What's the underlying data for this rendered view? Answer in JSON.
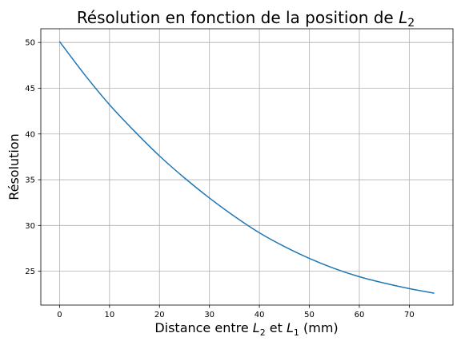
{
  "chart_data": {
    "type": "line",
    "title": {
      "main": "Résolution en fonction de la position de ",
      "var": "L",
      "sub": "2"
    },
    "xlabel": {
      "pre": "Distance entre ",
      "var1": "L",
      "sub1": "2",
      "mid": " et ",
      "var2": "L",
      "sub2": "1",
      "post": " (mm)"
    },
    "ylabel": "Résolution",
    "xlim": [
      -3.75,
      78.75
    ],
    "ylim": [
      21.3,
      51.5
    ],
    "x_ticks": [
      0,
      10,
      20,
      30,
      40,
      50,
      60,
      70
    ],
    "y_ticks": [
      25,
      30,
      35,
      40,
      45,
      50
    ],
    "grid": true,
    "line_color": "#1f77b4",
    "series": [
      {
        "x": [
          0,
          5,
          10,
          15,
          20,
          25,
          30,
          35,
          40,
          45,
          50,
          55,
          60,
          65,
          70,
          75
        ],
        "y": [
          50.1,
          46.5,
          43.2,
          40.3,
          37.6,
          35.2,
          33.0,
          31.0,
          29.2,
          27.7,
          26.4,
          25.3,
          24.4,
          23.7,
          23.1,
          22.6
        ]
      }
    ]
  }
}
